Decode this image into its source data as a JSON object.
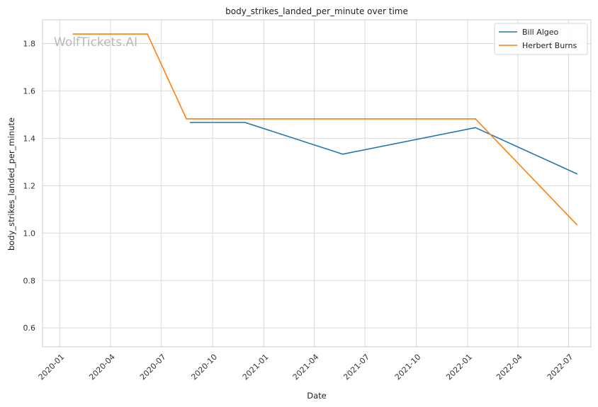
{
  "chart_data": {
    "type": "line",
    "title": "body_strikes_landed_per_minute over time",
    "xlabel": "Date",
    "ylabel": "body_strikes_landed_per_minute",
    "watermark": "WolfTickets.AI",
    "xlim": [
      "2019-12-01",
      "2022-08-10"
    ],
    "ylim": [
      0.52,
      1.9
    ],
    "x_ticks": [
      "2020-01",
      "2020-04",
      "2020-07",
      "2020-10",
      "2021-01",
      "2021-04",
      "2021-07",
      "2021-10",
      "2022-01",
      "2022-04",
      "2022-07"
    ],
    "y_ticks": [
      "0.6",
      "0.8",
      "1.0",
      "1.2",
      "1.4",
      "1.6",
      "1.8"
    ],
    "grid": true,
    "legend_position": "top-right",
    "series": [
      {
        "name": "Bill Algeo",
        "color": "#1f77b4",
        "x": [
          "2020-08-22",
          "2020-11-28",
          "2021-05-22",
          "2022-01-15",
          "2022-07-16"
        ],
        "y": [
          1.467,
          1.467,
          1.333,
          1.445,
          1.25
        ]
      },
      {
        "name": "Herbert Burns",
        "color": "#ff7f0e",
        "x": [
          "2020-01-25",
          "2020-06-06",
          "2020-08-15",
          "2022-01-15",
          "2022-07-16"
        ],
        "y": [
          1.84,
          1.84,
          1.482,
          1.482,
          1.035
        ]
      }
    ]
  }
}
